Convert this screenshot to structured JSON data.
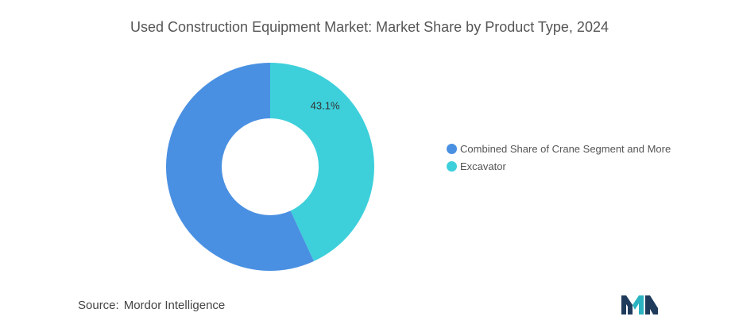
{
  "chart_data": {
    "type": "pie",
    "title": "Used Construction Equipment Market: Market Share by Product Type, 2024",
    "categories": [
      "Combined Share of Crane Segment and More",
      "Excavator"
    ],
    "values": [
      56.9,
      43.1
    ],
    "data_labels": [
      "",
      "43.1%"
    ],
    "colors": [
      "#4a90e2",
      "#3dd0db"
    ],
    "donut": true,
    "legend_position": "right"
  },
  "source": {
    "label": "Source:",
    "value": "Mordor Intelligence"
  },
  "logo": {
    "icon": "mordor-intelligence-logo",
    "colors": [
      "#1f3b5c",
      "#2ab3c0"
    ]
  }
}
